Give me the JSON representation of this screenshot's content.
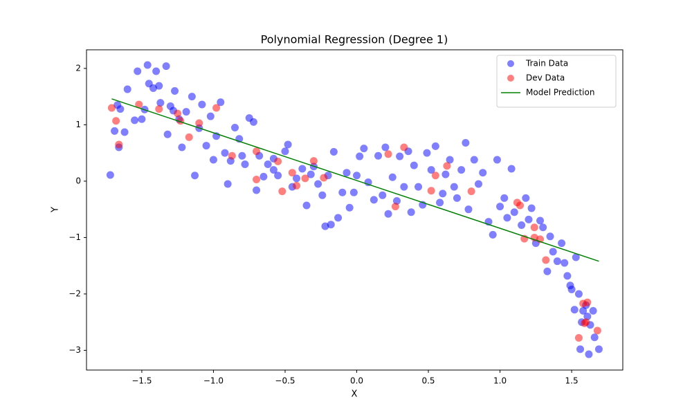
{
  "chart_data": {
    "type": "scatter",
    "title": "Polynomial Regression (Degree 1)",
    "x_label": "X",
    "y_label": "Y",
    "xlim": [
      -1.886,
      1.857
    ],
    "ylim": [
      -3.35,
      2.33
    ],
    "xticks": [
      {
        "value": -1.5,
        "label": "−1.5"
      },
      {
        "value": -1.0,
        "label": "−1.0"
      },
      {
        "value": -0.5,
        "label": "−0.5"
      },
      {
        "value": 0,
        "label": "0.0"
      },
      0.5,
      {
        "value": 1.0,
        "label": "1.0"
      },
      1.5
    ],
    "yticks": [
      {
        "value": -3,
        "label": "−3"
      },
      {
        "value": -2,
        "label": "−2"
      },
      {
        "value": -1,
        "label": "−1"
      },
      0,
      1,
      2
    ],
    "legend_position": "upper-right",
    "series": [
      {
        "name": "Train Data",
        "type": "scatter",
        "color": "#0000ff",
        "x": [
          -1.72,
          -1.69,
          -1.67,
          -1.65,
          -1.66,
          -1.62,
          -1.6,
          -1.55,
          -1.53,
          -1.5,
          -1.48,
          -1.46,
          -1.45,
          -1.42,
          -1.4,
          -1.38,
          -1.37,
          -1.33,
          -1.32,
          -1.3,
          -1.28,
          -1.27,
          -1.24,
          -1.22,
          -1.19,
          -1.15,
          -1.13,
          -1.1,
          -1.08,
          -1.05,
          -1.02,
          -0.98,
          -0.95,
          -0.92,
          -0.9,
          -0.88,
          -0.85,
          -0.82,
          -0.8,
          -0.78,
          -0.75,
          -0.72,
          -0.7,
          -0.68,
          -0.65,
          -0.62,
          -0.58,
          -0.55,
          -0.5,
          -0.48,
          -0.45,
          -0.42,
          -0.38,
          -0.35,
          -0.32,
          -0.3,
          -0.27,
          -0.24,
          -0.22,
          -0.2,
          -0.18,
          -0.16,
          -0.13,
          -0.1,
          -0.07,
          -0.05,
          -0.02,
          0.02,
          0.05,
          0.08,
          0.12,
          0.15,
          0.18,
          0.2,
          0.22,
          0.25,
          0.28,
          0.3,
          0.33,
          0.36,
          0.38,
          0.4,
          0.43,
          0.46,
          0.49,
          0.52,
          0.55,
          0.58,
          0.62,
          0.65,
          0.68,
          0.7,
          0.73,
          0.76,
          0.78,
          0.82,
          0.85,
          0.88,
          0.92,
          0.95,
          0.98,
          1.0,
          1.03,
          1.05,
          1.08,
          1.1,
          1.15,
          1.18,
          1.2,
          1.22,
          1.25,
          1.28,
          1.3,
          1.33,
          1.35,
          1.37,
          1.4,
          1.43,
          1.45,
          1.47,
          1.49,
          1.5,
          1.52,
          1.53,
          1.55,
          1.56,
          1.57,
          1.58,
          1.6,
          1.61,
          1.62,
          1.63,
          1.65,
          1.66,
          1.69,
          -0.58,
          0.0,
          -1.0,
          0.6
        ],
        "values": [
          0.11,
          0.89,
          1.35,
          1.28,
          0.6,
          0.87,
          1.63,
          1.08,
          1.95,
          1.1,
          1.27,
          2.06,
          1.73,
          1.65,
          1.95,
          1.69,
          1.39,
          2.04,
          0.83,
          1.33,
          1.25,
          1.6,
          1.1,
          0.6,
          1.23,
          1.5,
          0.1,
          0.94,
          1.36,
          0.63,
          1.15,
          0.8,
          1.4,
          0.5,
          -0.05,
          0.36,
          0.95,
          0.75,
          0.45,
          0.3,
          1.12,
          1.05,
          -0.16,
          0.45,
          0.08,
          0.3,
          0.2,
          0.1,
          0.53,
          0.65,
          -0.1,
          0.05,
          0.22,
          -0.43,
          0.12,
          0.26,
          -0.05,
          -0.25,
          -0.8,
          0.1,
          -0.77,
          0.52,
          -0.65,
          -0.2,
          0.15,
          -0.47,
          -0.2,
          0.44,
          0.58,
          -0.02,
          -0.33,
          0.45,
          -0.25,
          0.6,
          -0.58,
          0.07,
          -0.35,
          0.44,
          -0.1,
          0.53,
          -0.55,
          0.28,
          -0.1,
          -0.42,
          0.5,
          0.2,
          0.62,
          -0.38,
          0.12,
          0.38,
          -0.1,
          -0.3,
          0.2,
          0.68,
          -0.5,
          0.38,
          -0.05,
          0.15,
          -0.72,
          -0.95,
          0.38,
          -0.45,
          -0.3,
          -0.65,
          0.22,
          -0.55,
          -0.78,
          -0.3,
          -0.68,
          -0.48,
          -1.1,
          -0.7,
          -0.82,
          -1.6,
          -0.98,
          -1.25,
          -1.42,
          -1.1,
          -1.45,
          -1.68,
          -1.85,
          -1.92,
          -2.28,
          -1.35,
          -2.0,
          -2.98,
          -2.5,
          -2.3,
          -2.2,
          -2.4,
          -3.07,
          -2.55,
          -2.3,
          -2.77,
          -2.98,
          0.4,
          0.1,
          0.38,
          -0.22
        ]
      },
      {
        "name": "Dev Data",
        "type": "scatter",
        "color": "#ff0000",
        "x": [
          -1.71,
          -1.68,
          -1.66,
          -1.52,
          -1.38,
          -1.25,
          -1.23,
          -1.17,
          -1.1,
          -0.98,
          -0.87,
          -0.7,
          -0.7,
          -0.55,
          -0.52,
          -0.45,
          -0.42,
          -0.36,
          -0.3,
          -0.23,
          0.22,
          0.27,
          0.33,
          0.52,
          0.55,
          0.63,
          0.8,
          1.12,
          1.14,
          1.17,
          1.24,
          1.24,
          1.28,
          1.32,
          1.55,
          1.58,
          1.6,
          1.61,
          1.68,
          1.59
        ],
        "values": [
          1.3,
          1.07,
          0.65,
          1.36,
          1.28,
          1.2,
          1.07,
          0.78,
          1.03,
          1.3,
          0.45,
          0.53,
          0.03,
          0.35,
          -0.18,
          0.15,
          -0.08,
          0.05,
          0.36,
          0.06,
          0.48,
          -0.45,
          0.6,
          -0.17,
          0.1,
          0.27,
          -0.18,
          -0.38,
          -0.43,
          -1.02,
          -0.82,
          -1.0,
          -1.03,
          -1.4,
          -2.78,
          -2.17,
          -2.5,
          -2.15,
          -2.65,
          -2.52
        ]
      },
      {
        "name": "Model Prediction",
        "type": "line",
        "color": "#008000",
        "x": [
          -1.71,
          1.69
        ],
        "values": [
          1.46,
          -1.42
        ]
      }
    ]
  }
}
